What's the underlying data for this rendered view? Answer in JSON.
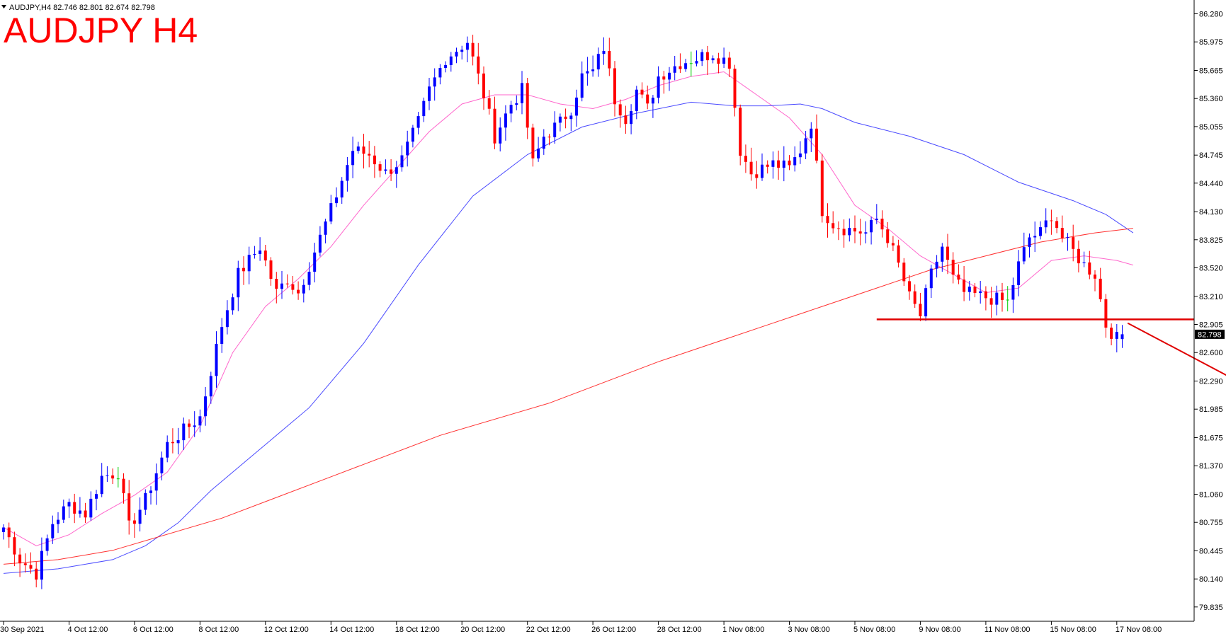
{
  "header": {
    "info": "AUDJPY,H4  82.746 82.801 82.674 82.798",
    "title": "AUDJPY H4"
  },
  "colors": {
    "background": "#ffffff",
    "bull": "#0000ff",
    "bear": "#ff0000",
    "neutral": "#00cc00",
    "ma_fast": "#ff66cc",
    "ma_mid": "#4a4aff",
    "ma_slow": "#ff3030",
    "annotation": "#e00000",
    "title": "#ff0000",
    "axis": "#000000"
  },
  "chart_data": {
    "type": "candlestick",
    "symbol": "AUDJPY",
    "timeframe": "H4",
    "ohlc_readout": {
      "open": 82.746,
      "high": 82.801,
      "low": 82.674,
      "close": 82.798
    },
    "current_price": "82.798",
    "ylim": [
      79.68,
      86.43
    ],
    "y_ticks": [
      "86.280",
      "85.975",
      "85.665",
      "85.360",
      "85.055",
      "84.745",
      "84.440",
      "84.130",
      "83.825",
      "83.520",
      "83.210",
      "82.905",
      "82.600",
      "82.290",
      "81.985",
      "81.675",
      "81.370",
      "81.060",
      "80.755",
      "80.445",
      "80.140",
      "79.835"
    ],
    "x_ticks": [
      {
        "label": "30 Sep 2021",
        "bar": 0
      },
      {
        "label": "4 Oct 12:00",
        "bar": 12
      },
      {
        "label": "6 Oct 12:00",
        "bar": 24
      },
      {
        "label": "8 Oct 12:00",
        "bar": 36
      },
      {
        "label": "12 Oct 12:00",
        "bar": 48
      },
      {
        "label": "14 Oct 12:00",
        "bar": 60
      },
      {
        "label": "18 Oct 12:00",
        "bar": 72
      },
      {
        "label": "20 Oct 12:00",
        "bar": 84
      },
      {
        "label": "22 Oct 12:00",
        "bar": 96
      },
      {
        "label": "26 Oct 12:00",
        "bar": 108
      },
      {
        "label": "28 Oct 12:00",
        "bar": 120
      },
      {
        "label": "1 Nov 08:00",
        "bar": 132
      },
      {
        "label": "3 Nov 08:00",
        "bar": 144
      },
      {
        "label": "5 Nov 08:00",
        "bar": 156
      },
      {
        "label": "9 Nov 08:00",
        "bar": 168
      },
      {
        "label": "11 Nov 08:00",
        "bar": 180
      },
      {
        "label": "15 Nov 08:00",
        "bar": 192
      },
      {
        "label": "17 Nov 08:00",
        "bar": 204
      }
    ],
    "close_anchors": [
      [
        0,
        80.7
      ],
      [
        3,
        80.35
      ],
      [
        6,
        80.2
      ],
      [
        9,
        80.75
      ],
      [
        12,
        80.95
      ],
      [
        15,
        80.85
      ],
      [
        18,
        81.25
      ],
      [
        21,
        81.3
      ],
      [
        23,
        80.7
      ],
      [
        26,
        81.0
      ],
      [
        30,
        81.6
      ],
      [
        33,
        81.75
      ],
      [
        36,
        81.9
      ],
      [
        40,
        82.9
      ],
      [
        43,
        83.45
      ],
      [
        47,
        83.75
      ],
      [
        50,
        83.25
      ],
      [
        52,
        83.4
      ],
      [
        54,
        83.25
      ],
      [
        57,
        83.7
      ],
      [
        60,
        84.15
      ],
      [
        64,
        84.8
      ],
      [
        67,
        84.75
      ],
      [
        70,
        84.55
      ],
      [
        73,
        84.7
      ],
      [
        76,
        85.1
      ],
      [
        78,
        85.45
      ],
      [
        81,
        85.8
      ],
      [
        85,
        85.98
      ],
      [
        88,
        85.4
      ],
      [
        90,
        84.95
      ],
      [
        93,
        85.3
      ],
      [
        95,
        85.45
      ],
      [
        97,
        84.65
      ],
      [
        99,
        84.95
      ],
      [
        102,
        85.1
      ],
      [
        104,
        85.25
      ],
      [
        106,
        85.6
      ],
      [
        108,
        85.65
      ],
      [
        110,
        85.92
      ],
      [
        112,
        85.35
      ],
      [
        114,
        85.15
      ],
      [
        116,
        85.45
      ],
      [
        118,
        85.25
      ],
      [
        120,
        85.6
      ],
      [
        124,
        85.75
      ],
      [
        127,
        85.8
      ],
      [
        130,
        85.85
      ],
      [
        133,
        85.75
      ],
      [
        135,
        84.8
      ],
      [
        137,
        84.55
      ],
      [
        141,
        84.65
      ],
      [
        144,
        84.6
      ],
      [
        146,
        84.8
      ],
      [
        148,
        85.1
      ],
      [
        150,
        84.15
      ],
      [
        152,
        84.0
      ],
      [
        154,
        83.95
      ],
      [
        158,
        83.9
      ],
      [
        160,
        84.05
      ],
      [
        162,
        83.85
      ],
      [
        164,
        83.55
      ],
      [
        166,
        83.2
      ],
      [
        168,
        83.0
      ],
      [
        170,
        83.45
      ],
      [
        172,
        83.75
      ],
      [
        174,
        83.4
      ],
      [
        176,
        83.25
      ],
      [
        180,
        83.2
      ],
      [
        184,
        83.15
      ],
      [
        186,
        83.55
      ],
      [
        188,
        83.85
      ],
      [
        190,
        83.9
      ],
      [
        192,
        84.1
      ],
      [
        194,
        83.85
      ],
      [
        196,
        83.7
      ],
      [
        198,
        83.55
      ],
      [
        200,
        83.45
      ],
      [
        202,
        82.9
      ],
      [
        204,
        82.75
      ],
      [
        205,
        82.8
      ]
    ],
    "series": [
      {
        "type": "moving-average",
        "points": [
          [
            0,
            80.7
          ],
          [
            6,
            80.5
          ],
          [
            12,
            80.62
          ],
          [
            18,
            80.85
          ],
          [
            24,
            81.05
          ],
          [
            30,
            81.3
          ],
          [
            36,
            81.8
          ],
          [
            42,
            82.6
          ],
          [
            48,
            83.1
          ],
          [
            54,
            83.4
          ],
          [
            60,
            83.75
          ],
          [
            66,
            84.2
          ],
          [
            72,
            84.6
          ],
          [
            78,
            85.0
          ],
          [
            84,
            85.3
          ],
          [
            90,
            85.4
          ],
          [
            96,
            85.4
          ],
          [
            102,
            85.3
          ],
          [
            108,
            85.25
          ],
          [
            114,
            85.35
          ],
          [
            120,
            85.5
          ],
          [
            126,
            85.6
          ],
          [
            132,
            85.65
          ],
          [
            138,
            85.4
          ],
          [
            144,
            85.15
          ],
          [
            150,
            84.75
          ],
          [
            156,
            84.2
          ],
          [
            162,
            83.95
          ],
          [
            168,
            83.65
          ],
          [
            174,
            83.45
          ],
          [
            180,
            83.25
          ],
          [
            186,
            83.3
          ],
          [
            192,
            83.6
          ],
          [
            198,
            83.65
          ],
          [
            204,
            83.6
          ],
          [
            207,
            83.55
          ]
        ]
      },
      {
        "type": "moving-average",
        "points": [
          [
            0,
            80.2
          ],
          [
            10,
            80.25
          ],
          [
            20,
            80.35
          ],
          [
            26,
            80.5
          ],
          [
            32,
            80.75
          ],
          [
            38,
            81.1
          ],
          [
            46,
            81.5
          ],
          [
            56,
            82.0
          ],
          [
            66,
            82.7
          ],
          [
            76,
            83.55
          ],
          [
            86,
            84.3
          ],
          [
            96,
            84.75
          ],
          [
            106,
            85.05
          ],
          [
            116,
            85.2
          ],
          [
            126,
            85.32
          ],
          [
            134,
            85.28
          ],
          [
            140,
            85.28
          ],
          [
            146,
            85.3
          ],
          [
            150,
            85.25
          ],
          [
            156,
            85.1
          ],
          [
            166,
            84.95
          ],
          [
            176,
            84.75
          ],
          [
            186,
            84.45
          ],
          [
            196,
            84.25
          ],
          [
            202,
            84.1
          ],
          [
            207,
            83.9
          ]
        ]
      },
      {
        "type": "moving-average",
        "points": [
          [
            0,
            80.3
          ],
          [
            10,
            80.35
          ],
          [
            20,
            80.45
          ],
          [
            40,
            80.8
          ],
          [
            60,
            81.25
          ],
          [
            80,
            81.7
          ],
          [
            100,
            82.05
          ],
          [
            120,
            82.5
          ],
          [
            140,
            82.9
          ],
          [
            150,
            83.1
          ],
          [
            160,
            83.3
          ],
          [
            170,
            83.5
          ],
          [
            180,
            83.65
          ],
          [
            190,
            83.8
          ],
          [
            200,
            83.9
          ],
          [
            207,
            83.95
          ]
        ]
      }
    ],
    "annotations": [
      {
        "type": "horizontal-line",
        "price": 82.96,
        "from_bar": 160
      },
      {
        "type": "arrow",
        "from": [
          206,
          82.92
        ],
        "to": [
          236,
          81.98
        ]
      }
    ]
  }
}
